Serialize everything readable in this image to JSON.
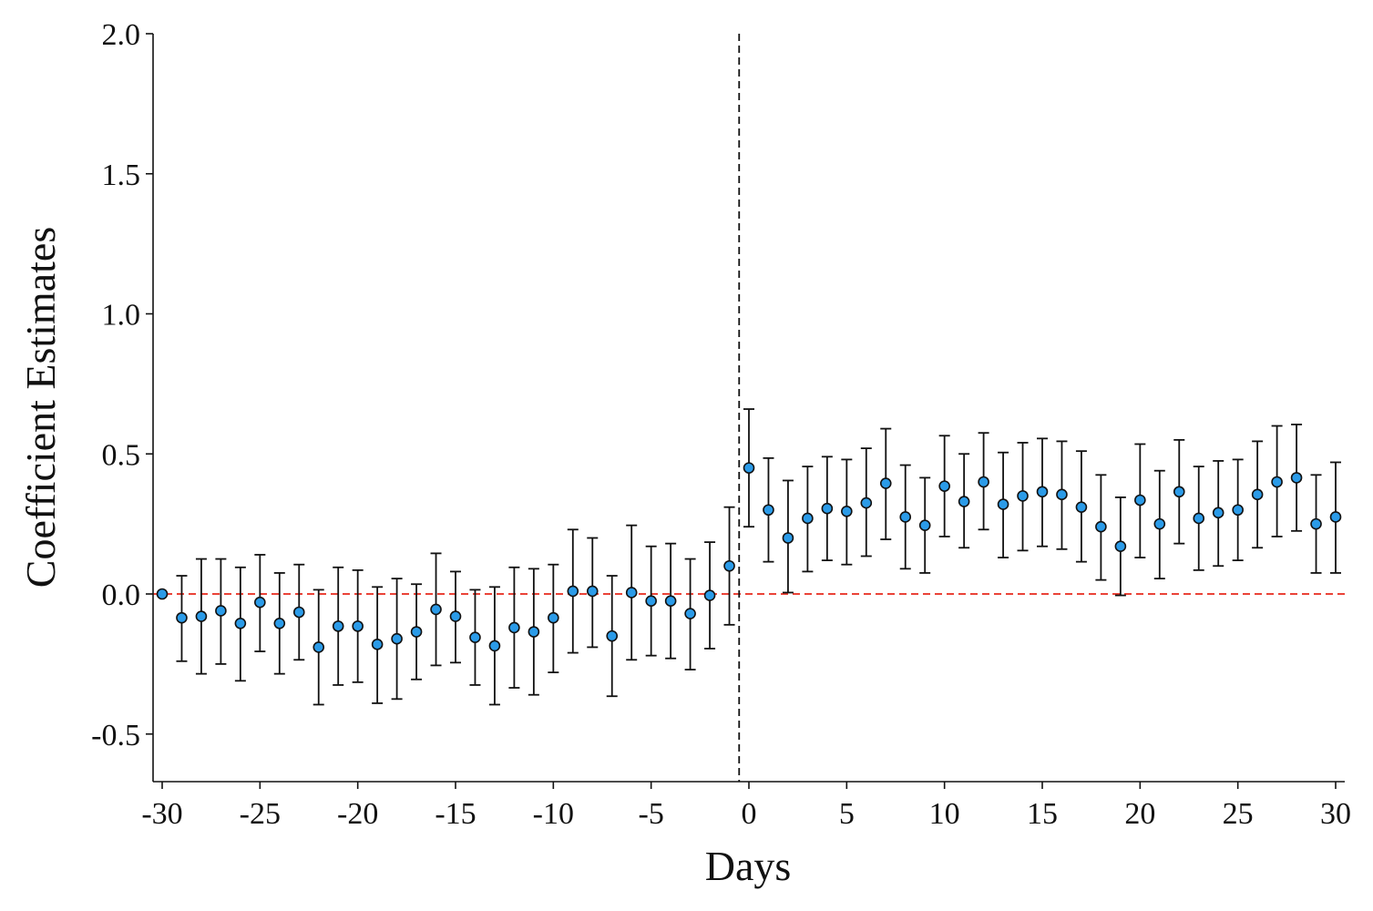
{
  "chart_data": {
    "type": "scatter",
    "title": "",
    "xlabel": "Days",
    "ylabel": "Coefficient Estimates",
    "xlim": [
      -30.5,
      30.5
    ],
    "ylim": [
      -0.67,
      2.0
    ],
    "xticks": [
      -30,
      -25,
      -20,
      -15,
      -10,
      -5,
      0,
      5,
      10,
      15,
      20,
      25,
      30
    ],
    "xtick_labels": [
      "-30",
      "-25",
      "-20",
      "-15",
      "-10",
      "-5",
      "0",
      "5",
      "10",
      "15",
      "20",
      "25",
      "30"
    ],
    "yticks": [
      -0.5,
      0.0,
      0.5,
      1.0,
      1.5,
      2.0
    ],
    "ytick_labels": [
      "-0.5",
      "0.0",
      "0.5",
      "1.0",
      "1.5",
      "2.0"
    ],
    "grid": false,
    "reference_lines": {
      "horizontal_y": 0.0,
      "horizontal_color": "#e8291c",
      "vertical_x": -0.5,
      "vertical_color": "#111111"
    },
    "marker_color": "#2b9be8",
    "errorbar_color": "#111111",
    "series": [
      {
        "x": [
          -30,
          -29,
          -28,
          -27,
          -26,
          -25,
          -24,
          -23,
          -22,
          -21,
          -20,
          -19,
          -18,
          -17,
          -16,
          -15,
          -14,
          -13,
          -12,
          -11,
          -10,
          -9,
          -8,
          -7,
          -6,
          -5,
          -4,
          -3,
          -2,
          -1,
          0,
          1,
          2,
          3,
          4,
          5,
          6,
          7,
          8,
          9,
          10,
          11,
          12,
          13,
          14,
          15,
          16,
          17,
          18,
          19,
          20,
          21,
          22,
          23,
          24,
          25,
          26,
          27,
          28,
          29,
          30
        ],
        "y": [
          0.0,
          -0.085,
          -0.08,
          -0.06,
          -0.105,
          -0.03,
          -0.105,
          -0.065,
          -0.19,
          -0.115,
          -0.115,
          -0.18,
          -0.16,
          -0.135,
          -0.055,
          -0.08,
          -0.155,
          -0.185,
          -0.12,
          -0.135,
          -0.085,
          0.01,
          0.01,
          -0.15,
          0.005,
          -0.025,
          -0.025,
          -0.07,
          -0.005,
          0.1,
          0.45,
          0.3,
          0.2,
          0.27,
          0.305,
          0.295,
          0.325,
          0.395,
          0.275,
          0.245,
          0.385,
          0.33,
          0.4,
          0.32,
          0.35,
          0.365,
          0.355,
          0.31,
          0.24,
          0.17,
          0.335,
          0.25,
          0.365,
          0.27,
          0.29,
          0.3,
          0.355,
          0.4,
          0.415,
          0.25,
          0.275
        ],
        "lower": [
          0.0,
          -0.24,
          -0.285,
          -0.25,
          -0.31,
          -0.205,
          -0.285,
          -0.235,
          -0.395,
          -0.325,
          -0.315,
          -0.39,
          -0.375,
          -0.305,
          -0.255,
          -0.245,
          -0.325,
          -0.395,
          -0.335,
          -0.36,
          -0.28,
          -0.21,
          -0.19,
          -0.365,
          -0.235,
          -0.22,
          -0.23,
          -0.27,
          -0.195,
          -0.11,
          0.24,
          0.115,
          0.005,
          0.08,
          0.12,
          0.105,
          0.135,
          0.195,
          0.09,
          0.075,
          0.205,
          0.165,
          0.23,
          0.13,
          0.155,
          0.17,
          0.16,
          0.115,
          0.05,
          -0.005,
          0.13,
          0.055,
          0.18,
          0.085,
          0.1,
          0.12,
          0.165,
          0.205,
          0.225,
          0.075,
          0.075
        ],
        "upper": [
          0.0,
          0.065,
          0.125,
          0.125,
          0.095,
          0.14,
          0.075,
          0.105,
          0.015,
          0.095,
          0.085,
          0.025,
          0.055,
          0.035,
          0.145,
          0.08,
          0.015,
          0.025,
          0.095,
          0.09,
          0.105,
          0.23,
          0.2,
          0.065,
          0.245,
          0.17,
          0.18,
          0.125,
          0.185,
          0.31,
          0.66,
          0.485,
          0.405,
          0.455,
          0.49,
          0.48,
          0.52,
          0.59,
          0.46,
          0.415,
          0.565,
          0.5,
          0.575,
          0.505,
          0.54,
          0.555,
          0.545,
          0.51,
          0.425,
          0.345,
          0.535,
          0.44,
          0.55,
          0.455,
          0.475,
          0.48,
          0.545,
          0.6,
          0.605,
          0.425,
          0.47
        ]
      }
    ]
  }
}
